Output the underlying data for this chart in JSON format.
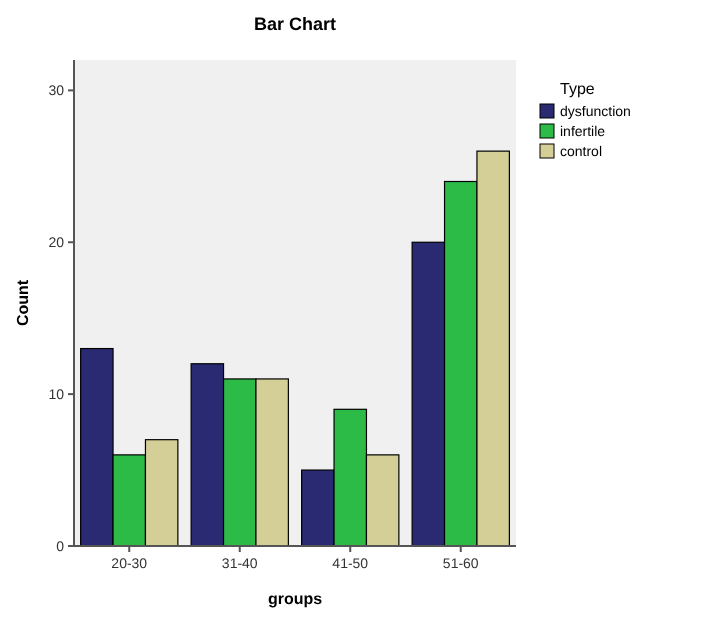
{
  "chart_data": {
    "type": "bar",
    "title": "Bar Chart",
    "xlabel": "groups",
    "ylabel": "Count",
    "legend_title": "Type",
    "categories": [
      "20-30",
      "31-40",
      "41-50",
      "51-60"
    ],
    "series": [
      {
        "name": "dysfunction",
        "color": "#2a2a72",
        "values": [
          13,
          12,
          5,
          20
        ]
      },
      {
        "name": "infertile",
        "color": "#2dbb48",
        "values": [
          6,
          11,
          9,
          24
        ]
      },
      {
        "name": "control",
        "color": "#d4cf96",
        "values": [
          7,
          11,
          6,
          26
        ]
      }
    ],
    "ylim": [
      0,
      32
    ],
    "yticks": [
      0,
      10,
      20,
      30
    ],
    "grid": false,
    "legend": "top right"
  }
}
